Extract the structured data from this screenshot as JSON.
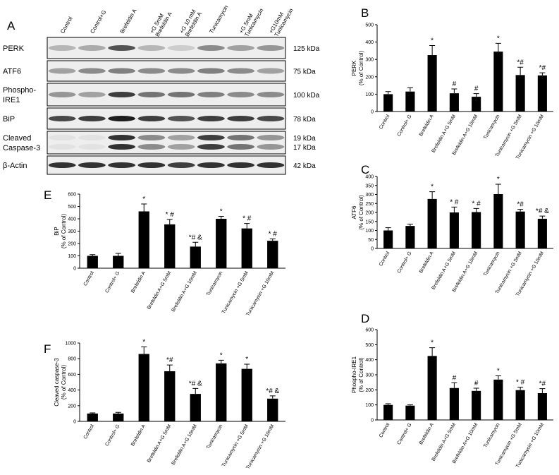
{
  "blot": {
    "panel": "A",
    "lanes": [
      "Control",
      "Control+G",
      "Brefeldin A",
      [
        "Brefeldin A",
        "+G 5mM"
      ],
      [
        "Brefeldin A",
        "+G 10 mM"
      ],
      "Tunicamycin",
      [
        "Tunicamycin",
        "+G 5mM"
      ],
      [
        "Tunicamycin",
        "+G10mM"
      ]
    ],
    "rows": [
      {
        "label": [
          "PERK"
        ],
        "size": [
          "125 kDa"
        ]
      },
      {
        "label": [
          "ATF6"
        ],
        "size": [
          "75 kDa"
        ]
      },
      {
        "label": [
          "Phospho-",
          "IRE1"
        ],
        "size": [
          "100 kDa"
        ]
      },
      {
        "label": [
          "BiP"
        ],
        "size": [
          "78 kDa"
        ]
      },
      {
        "label": [
          "Cleaved",
          "Caspase-3"
        ],
        "size": [
          "19 kDa",
          "17 kDa"
        ]
      },
      {
        "label": [
          "β-Actin"
        ],
        "size": [
          "42 kDa"
        ]
      }
    ]
  },
  "chart_data": [
    {
      "type": "bar",
      "panel": "B",
      "ylabel": [
        "PERK",
        "(% of Control)"
      ],
      "categories": [
        "Control",
        "Control+ G",
        "Brefeldin A",
        "Brefeldin A+G 5mM",
        "Brefeldin A+G 10mM",
        "Tunicamycin",
        "Tunicamycin +G 5mM",
        "Tunicamycin +G 10mM"
      ],
      "values": [
        100,
        115,
        325,
        105,
        85,
        345,
        210,
        208
      ],
      "errors": [
        15,
        22,
        55,
        25,
        18,
        48,
        45,
        15
      ],
      "annotations": [
        null,
        null,
        "*",
        "#",
        "#",
        "*",
        "*#",
        "*#"
      ],
      "color": "#000000",
      "ylim": [
        0,
        500
      ],
      "yticks": [
        0,
        100,
        200,
        300,
        400,
        500
      ]
    },
    {
      "type": "bar",
      "panel": "C",
      "ylabel": [
        "ATF6",
        "(% of Control)"
      ],
      "categories": [
        "Control",
        "Control+ G",
        "Brefeldin A",
        "Brefeldin A+G 5mM",
        "Brefeldin A+G 10mM",
        "Tunicamycin",
        "Tunicamycin +G 5mM",
        "Tunicamycin +G 10mM"
      ],
      "values": [
        100,
        125,
        275,
        200,
        202,
        302,
        205,
        165
      ],
      "errors": [
        15,
        10,
        40,
        30,
        20,
        55,
        12,
        15
      ],
      "annotations": [
        null,
        null,
        "*",
        "* #",
        "* #",
        "*",
        "*#",
        "*# &"
      ],
      "color": "#000000",
      "ylim": [
        0,
        400
      ],
      "yticks": [
        0,
        50,
        100,
        150,
        200,
        250,
        300,
        350,
        400
      ]
    },
    {
      "type": "bar",
      "panel": "D",
      "ylabel": [
        "Phospho-IRE1",
        "(% of Control)"
      ],
      "categories": [
        "Control",
        "Control+ G",
        "Brefeldin A",
        "Brefeldin A+G 5mM",
        "Brefeldin A+G 10mM",
        "Tunicamycin",
        "Tunicamycin +G 5mM",
        "Tunicamycin +G 10mM"
      ],
      "values": [
        100,
        95,
        425,
        212,
        193,
        268,
        198,
        178
      ],
      "errors": [
        8,
        5,
        55,
        35,
        18,
        25,
        20,
        30
      ],
      "annotations": [
        null,
        null,
        "*",
        "#",
        "#",
        "*",
        "* #",
        "*#"
      ],
      "color": "#000000",
      "ylim": [
        0,
        600
      ],
      "yticks": [
        0,
        100,
        200,
        300,
        400,
        500,
        600
      ]
    },
    {
      "type": "bar",
      "panel": "E",
      "ylabel": [
        "BiP",
        "(% of Control)"
      ],
      "categories": [
        "Control",
        "Control+ G",
        "Brefeldin A",
        "Brefeldin A+G 5mM",
        "Brefeldin A+G 10mM",
        "Tunicamycin",
        "Tunicamycin +G 5mM",
        "Tunicamycin +G 10mM"
      ],
      "values": [
        100,
        100,
        460,
        355,
        175,
        400,
        322,
        222
      ],
      "errors": [
        10,
        20,
        60,
        40,
        35,
        20,
        40,
        15
      ],
      "annotations": [
        null,
        null,
        "*",
        "* #",
        "*# &",
        "*",
        "* #",
        "* #"
      ],
      "color": "#000000",
      "ylim": [
        0,
        600
      ],
      "yticks": [
        0,
        100,
        200,
        300,
        400,
        500,
        600
      ]
    },
    {
      "type": "bar",
      "panel": "F",
      "ylabel": [
        "Cleaved caspase-3",
        "(% of Control)"
      ],
      "categories": [
        "Control",
        "Control+ G",
        "Brefeldin A",
        "Brefeldin A+G 5mM",
        "Brefeldin A+G 10mM",
        "Tunicamycin",
        "Tunicamycin +G 5mM",
        "Tunicamycin +G 10mM"
      ],
      "values": [
        100,
        100,
        860,
        640,
        350,
        740,
        670,
        290
      ],
      "errors": [
        8,
        15,
        90,
        80,
        70,
        40,
        60,
        35
      ],
      "annotations": [
        null,
        null,
        "*",
        "*#",
        "*# &",
        "*",
        "*",
        "*# &"
      ],
      "color": "#000000",
      "ylim": [
        0,
        1000
      ],
      "yticks": [
        0,
        200,
        400,
        600,
        800,
        1000
      ]
    }
  ]
}
